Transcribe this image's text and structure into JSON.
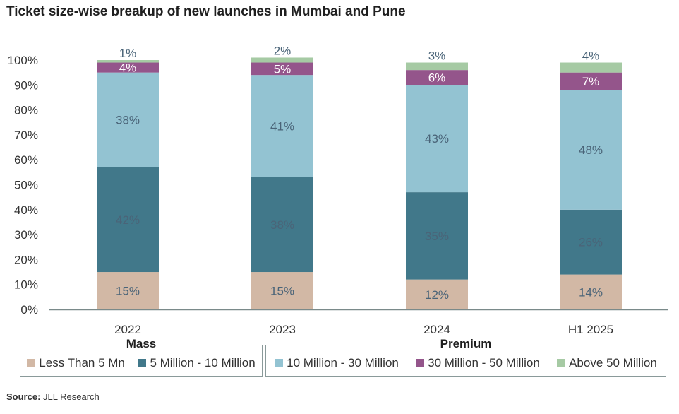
{
  "chart_data": {
    "type": "bar",
    "stacked": true,
    "title": "Ticket size-wise breakup of new launches in Mumbai and Pune",
    "categories": [
      "2022",
      "2023",
      "2024",
      "H1 2025"
    ],
    "ylim": [
      0,
      100
    ],
    "yticks": [
      "0%",
      "10%",
      "20%",
      "30%",
      "40%",
      "50%",
      "60%",
      "70%",
      "80%",
      "90%",
      "100%"
    ],
    "grid": false,
    "legend_position": "bottom",
    "series": [
      {
        "name": "Less Than 5 Mn",
        "group": "Mass",
        "color": "#d2b8a5",
        "values": [
          15,
          15,
          12,
          14
        ],
        "labels": [
          "15%",
          "15%",
          "12%",
          "14%"
        ]
      },
      {
        "name": "5 Million - 10 Million",
        "group": "Mass",
        "color": "#41788a",
        "values": [
          42,
          38,
          35,
          26
        ],
        "labels": [
          "42%",
          "38%",
          "35%",
          "26%"
        ]
      },
      {
        "name": "10 Million - 30 Million",
        "group": "Premium",
        "color": "#93c3d2",
        "values": [
          38,
          41,
          43,
          48
        ],
        "labels": [
          "38%",
          "41%",
          "43%",
          "48%"
        ]
      },
      {
        "name": "30 Million - 50 Million",
        "group": "Premium",
        "color": "#94558b",
        "values": [
          4,
          5,
          6,
          7
        ],
        "labels": [
          "4%",
          "5%",
          "6%",
          "7%"
        ]
      },
      {
        "name": "Above 50 Million",
        "group": "Premium",
        "color": "#a6caa4",
        "values": [
          1,
          2,
          3,
          4
        ],
        "labels": [
          "1%",
          "2%",
          "3%",
          "4%"
        ]
      }
    ],
    "legend_groups": [
      {
        "title": "Mass",
        "items": [
          "Less Than 5 Mn",
          "5 Million - 10 Million"
        ]
      },
      {
        "title": "Premium",
        "items": [
          "10 Million - 30 Million",
          "30 Million - 50 Million",
          "Above 50 Million"
        ]
      }
    ]
  },
  "source": {
    "label": "Source:",
    "text": "JLL Research"
  }
}
